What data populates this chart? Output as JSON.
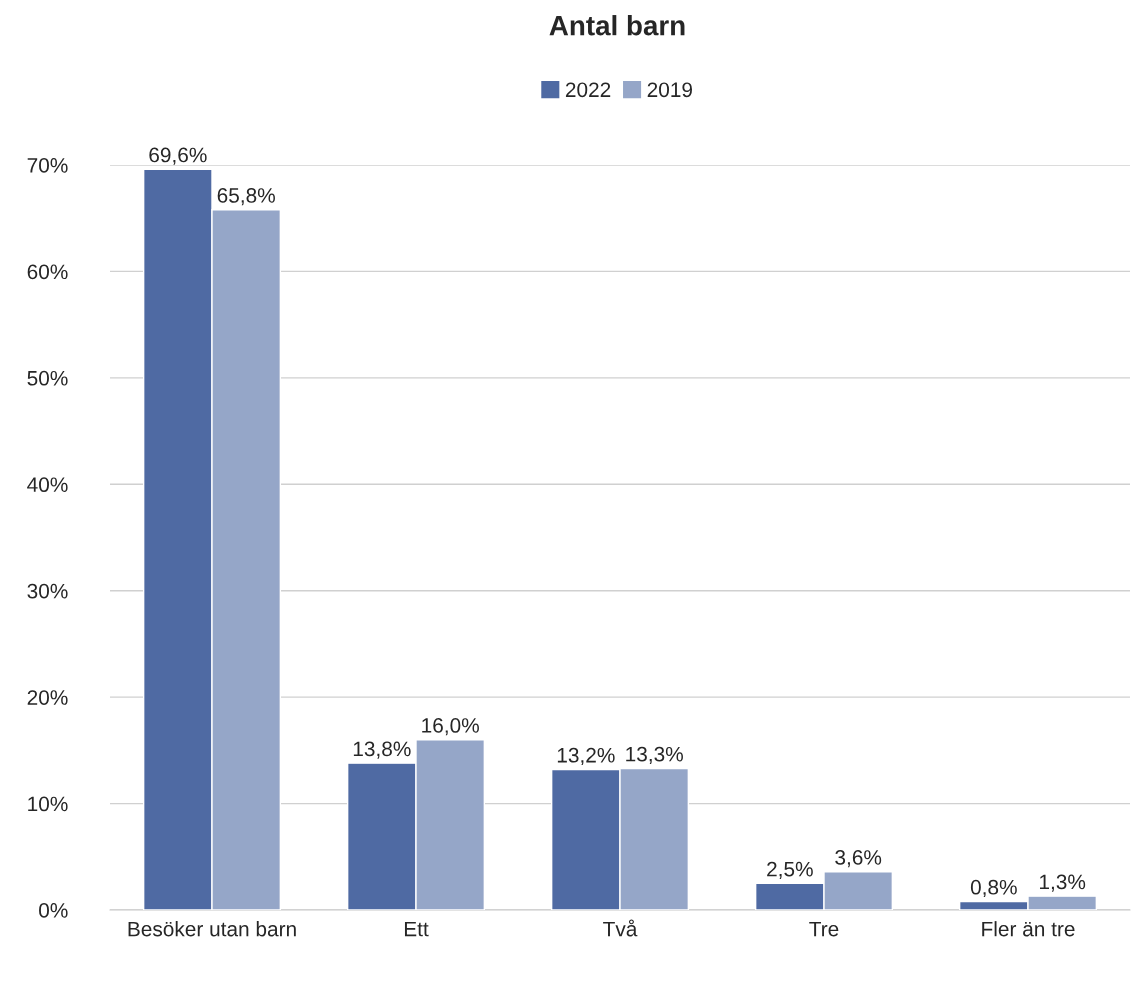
{
  "chart_data": {
    "type": "bar",
    "title": "Antal barn",
    "categories": [
      "Besöker utan barn",
      "Ett",
      "Två",
      "Tre",
      "Fler än tre"
    ],
    "series": [
      {
        "name": "2022",
        "color": "#4f6aa3",
        "values": [
          69.6,
          13.8,
          13.2,
          2.5,
          0.8
        ],
        "value_labels": [
          "69,6%",
          "13,8%",
          "13,2%",
          "2,5%",
          "0,8%"
        ]
      },
      {
        "name": "2019",
        "color": "#95a6c8",
        "values": [
          65.8,
          16.0,
          13.3,
          3.6,
          1.3
        ],
        "value_labels": [
          "65,8%",
          "16,0%",
          "13,3%",
          "3,6%",
          "1,3%"
        ]
      }
    ],
    "ylim": [
      0,
      70
    ],
    "yticks": [
      {
        "value": 0,
        "label": "0%"
      },
      {
        "value": 10,
        "label": "10%"
      },
      {
        "value": 20,
        "label": "20%"
      },
      {
        "value": 30,
        "label": "30%"
      },
      {
        "value": 40,
        "label": "40%"
      },
      {
        "value": 50,
        "label": "50%"
      },
      {
        "value": 60,
        "label": "60%"
      },
      {
        "value": 70,
        "label": "70%"
      }
    ],
    "grid": "y",
    "legend": "top"
  }
}
